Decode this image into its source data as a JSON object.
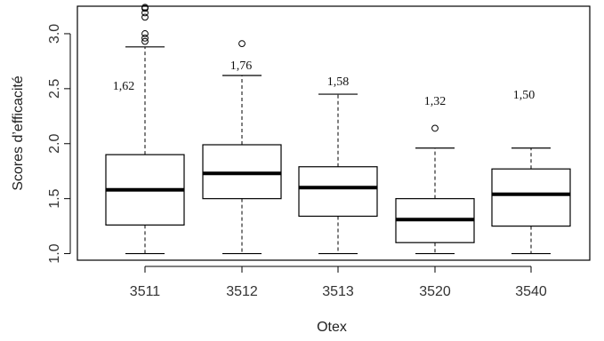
{
  "chart_data": {
    "type": "box",
    "xlabel": "Otex",
    "ylabel": "Scores d’efficacité",
    "ylim": [
      0.94,
      3.25
    ],
    "yticks": [
      "1.0",
      "1.5",
      "2.0",
      "2.5",
      "3.0"
    ],
    "ytick_values": [
      1.0,
      1.5,
      2.0,
      2.5,
      3.0
    ],
    "grid": false,
    "categories": [
      "3511",
      "3512",
      "3513",
      "3520",
      "3540"
    ],
    "boxes": [
      {
        "category": "3511",
        "min": 1.0,
        "q1": 1.26,
        "median": 1.58,
        "q3": 1.9,
        "max": 2.88,
        "outliers": [
          2.93,
          2.96,
          3.0,
          3.15,
          3.19,
          3.23,
          3.24
        ],
        "annotation": "1,62"
      },
      {
        "category": "3512",
        "min": 1.0,
        "q1": 1.5,
        "median": 1.73,
        "q3": 1.99,
        "max": 2.62,
        "outliers": [
          2.91
        ],
        "annotation": "1,76"
      },
      {
        "category": "3513",
        "min": 1.0,
        "q1": 1.34,
        "median": 1.6,
        "q3": 1.79,
        "max": 2.45,
        "outliers": [],
        "annotation": "1,58"
      },
      {
        "category": "3520",
        "min": 1.0,
        "q1": 1.1,
        "median": 1.31,
        "q3": 1.5,
        "max": 1.96,
        "outliers": [
          2.14
        ],
        "annotation": "1,32"
      },
      {
        "category": "3540",
        "min": 1.0,
        "q1": 1.25,
        "median": 1.54,
        "q3": 1.77,
        "max": 1.96,
        "outliers": [],
        "annotation": "1,50"
      }
    ]
  }
}
